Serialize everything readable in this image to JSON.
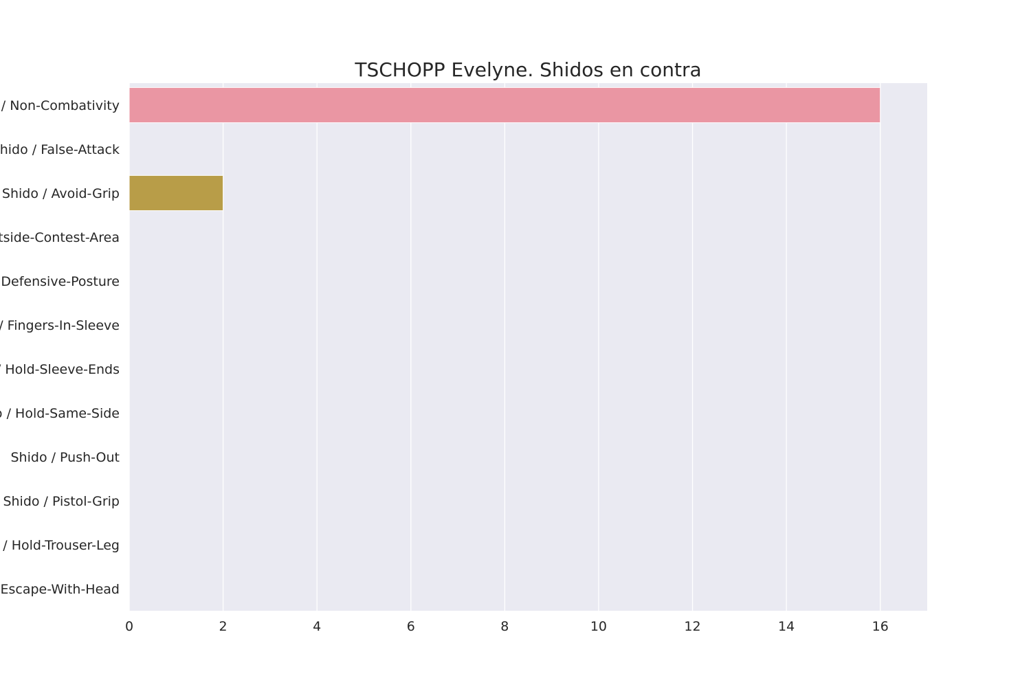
{
  "chart_data": {
    "type": "bar",
    "orientation": "horizontal",
    "title": "TSCHOPP Evelyne. Shidos en contra",
    "xlabel": "",
    "ylabel": "",
    "xlim": [
      0,
      17
    ],
    "x_ticks": [
      0,
      2,
      4,
      6,
      8,
      10,
      12,
      14,
      16
    ],
    "grid": true,
    "categories": [
      "Shido / Non-Combativity",
      "Shido / False-Attack",
      "Shido / Avoid-Grip",
      "Shido / Outside-Contest-Area",
      "Shido / Defensive-Posture",
      "Shido / Fingers-In-Sleeve",
      "Shido / Hold-Sleeve-Ends",
      "Shido / Hold-Same-Side",
      "Shido / Push-Out",
      "Shido / Pistol-Grip",
      "Shido / Hold-Trouser-Leg",
      "Shido / Escape-With-Head"
    ],
    "values": [
      16,
      0,
      2,
      0,
      0,
      0,
      0,
      0,
      0,
      0,
      0,
      0
    ],
    "colors": [
      "#ea96a3",
      "#d8a062",
      "#b89d48",
      "#96a648",
      "#5dae49",
      "#4bac88",
      "#4ca9a1",
      "#4ea6b9",
      "#58a1d8",
      "#a38fe9",
      "#d883e9",
      "#e88fc8"
    ],
    "background": "#eaeaf2",
    "grid_color": "#ffffff"
  }
}
